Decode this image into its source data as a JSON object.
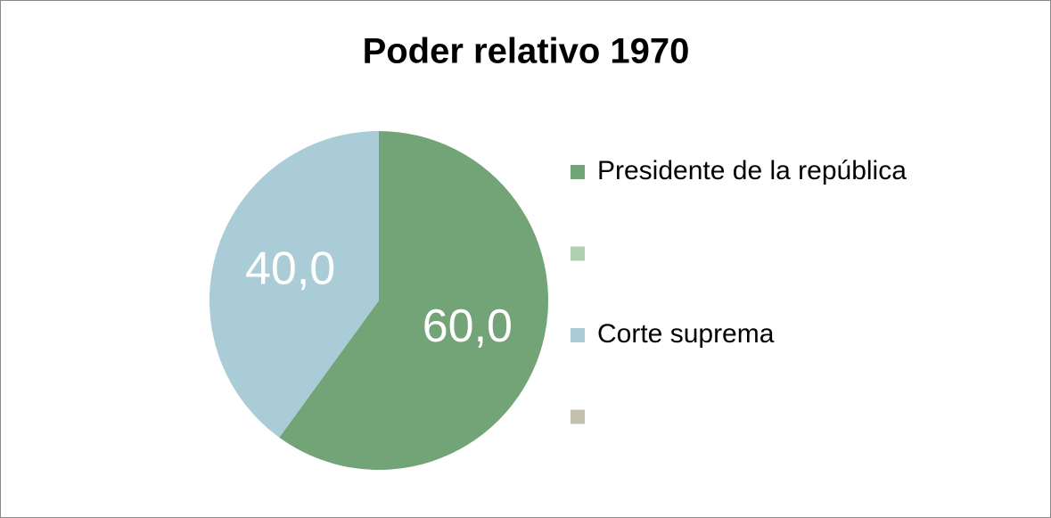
{
  "chart_data": {
    "type": "pie",
    "title": "Poder relativo 1970",
    "categories": [
      "Presidente de la república",
      null,
      "Corte suprema",
      null
    ],
    "values": [
      60,
      0,
      40,
      0
    ],
    "value_labels": [
      "60,0",
      null,
      "40,0",
      null
    ],
    "colors": [
      "#73a477",
      "#b0cfb2",
      "#a9ccd6",
      "#c4c0b0"
    ],
    "legend": "right"
  }
}
